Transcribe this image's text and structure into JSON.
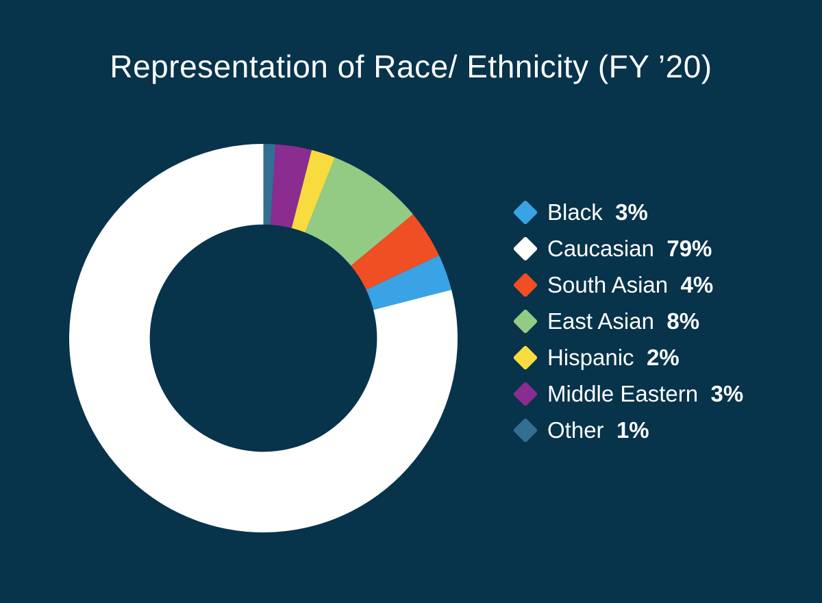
{
  "page": {
    "background_color": "#07334B",
    "text_color": "#FFFFFF"
  },
  "title": "Representation of Race/ Ethnicity (FY ’20)",
  "chart_data": {
    "type": "pie",
    "subtype": "donut",
    "title": "Representation of Race/ Ethnicity (FY ’20)",
    "inner_radius_ratio": 0.585,
    "start_angle_deg": 0,
    "direction": "clockwise",
    "legend_position": "right",
    "legend_marker": "diamond",
    "series": [
      {
        "label": "Black",
        "value_pct": 3,
        "display": "3%",
        "color": "#3AA3E6"
      },
      {
        "label": "Caucasian",
        "value_pct": 79,
        "display": "79%",
        "color": "#FFFFFF"
      },
      {
        "label": "South Asian",
        "value_pct": 4,
        "display": "4%",
        "color": "#F04E23"
      },
      {
        "label": "East Asian",
        "value_pct": 8,
        "display": "8%",
        "color": "#93CB85"
      },
      {
        "label": "Hispanic",
        "value_pct": 2,
        "display": "2%",
        "color": "#F7DB3F"
      },
      {
        "label": "Middle Eastern",
        "value_pct": 3,
        "display": "3%",
        "color": "#8B2C90"
      },
      {
        "label": "Other",
        "value_pct": 1,
        "display": "1%",
        "color": "#336F92"
      }
    ],
    "draw_order_clockwise_from_top": [
      "Other",
      "Middle Eastern",
      "Hispanic",
      "East Asian",
      "South Asian",
      "Black",
      "Caucasian"
    ]
  }
}
